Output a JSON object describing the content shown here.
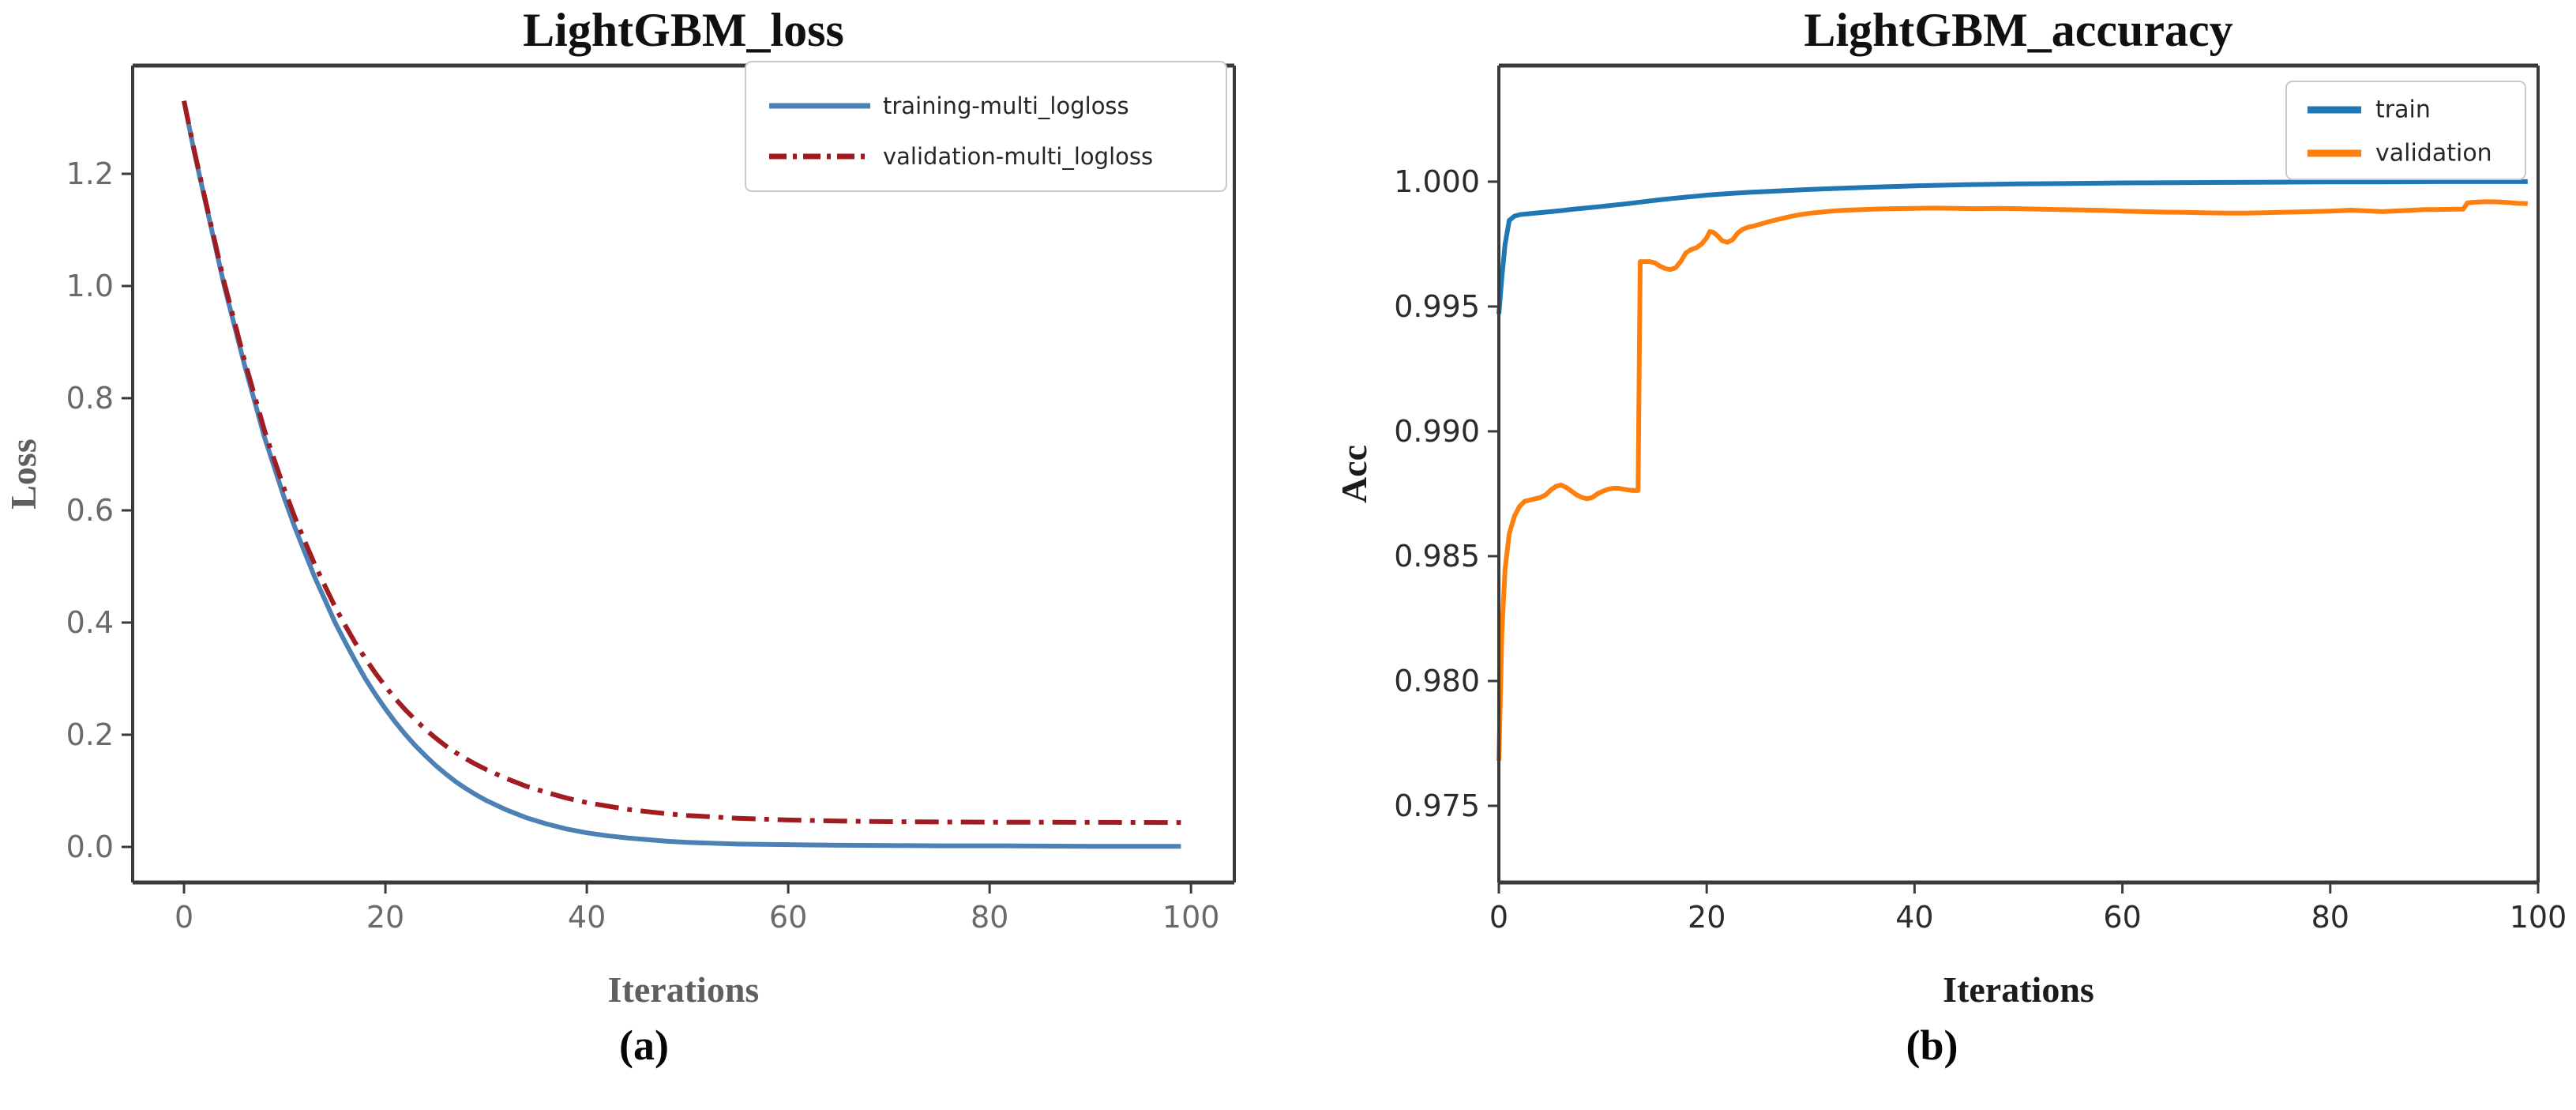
{
  "figure": {
    "background": "#ffffff",
    "captions": [
      {
        "label": "(a)"
      },
      {
        "label": "(b)"
      }
    ]
  },
  "chart_data": [
    {
      "type": "line",
      "title": "LightGBM_loss",
      "xlabel": "Iterations",
      "ylabel": "Loss",
      "xlim": [
        -5.1,
        104.3
      ],
      "ylim": [
        -0.0634,
        1.393
      ],
      "xticks": [
        0,
        20,
        40,
        60,
        80,
        100
      ],
      "yticks": [
        0.0,
        0.2,
        0.4,
        0.6,
        0.8,
        1.0,
        1.2
      ],
      "ytick_decimals": 1,
      "grid": false,
      "legend_position": "upper-right",
      "title_color": "#101010",
      "text_color": "#5f5f5f",
      "tick_label_color": "#6a6a6a",
      "spine_color": "#3a3a3a",
      "series": [
        {
          "name": "training-multi_logloss",
          "color": "#4d80b4",
          "style": "solid",
          "points": [
            [
              0,
              1.33
            ],
            [
              1,
              1.24
            ],
            [
              2,
              1.16
            ],
            [
              3,
              1.08
            ],
            [
              4,
              1.0
            ],
            [
              5,
              0.93
            ],
            [
              6,
              0.86
            ],
            [
              7,
              0.795
            ],
            [
              8,
              0.73
            ],
            [
              9,
              0.675
            ],
            [
              10,
              0.62
            ],
            [
              11,
              0.57
            ],
            [
              12,
              0.525
            ],
            [
              13,
              0.48
            ],
            [
              14,
              0.44
            ],
            [
              15,
              0.4
            ],
            [
              16,
              0.365
            ],
            [
              17,
              0.332
            ],
            [
              18,
              0.3
            ],
            [
              19,
              0.272
            ],
            [
              20,
              0.246
            ],
            [
              21,
              0.222
            ],
            [
              22,
              0.2
            ],
            [
              23,
              0.18
            ],
            [
              24,
              0.162
            ],
            [
              25,
              0.145
            ],
            [
              26,
              0.13
            ],
            [
              27,
              0.116
            ],
            [
              28,
              0.104
            ],
            [
              29,
              0.093
            ],
            [
              30,
              0.083
            ],
            [
              32,
              0.066
            ],
            [
              34,
              0.052
            ],
            [
              36,
              0.041
            ],
            [
              38,
              0.032
            ],
            [
              40,
              0.025
            ],
            [
              42,
              0.02
            ],
            [
              44,
              0.016
            ],
            [
              46,
              0.013
            ],
            [
              48,
              0.01
            ],
            [
              50,
              0.008
            ],
            [
              55,
              0.005
            ],
            [
              60,
              0.004
            ],
            [
              65,
              0.003
            ],
            [
              70,
              0.0025
            ],
            [
              75,
              0.002
            ],
            [
              80,
              0.002
            ],
            [
              85,
              0.0015
            ],
            [
              90,
              0.001
            ],
            [
              95,
              0.001
            ],
            [
              99,
              0.001
            ]
          ]
        },
        {
          "name": "validation-multi_logloss",
          "color": "#a01c20",
          "style": "dashdot",
          "points": [
            [
              0,
              1.33
            ],
            [
              1,
              1.243
            ],
            [
              2,
              1.163
            ],
            [
              3,
              1.084
            ],
            [
              4,
              1.006
            ],
            [
              5,
              0.937
            ],
            [
              6,
              0.868
            ],
            [
              7,
              0.805
            ],
            [
              8,
              0.742
            ],
            [
              9,
              0.688
            ],
            [
              10,
              0.636
            ],
            [
              11,
              0.588
            ],
            [
              12,
              0.545
            ],
            [
              13,
              0.503
            ],
            [
              14,
              0.465
            ],
            [
              15,
              0.428
            ],
            [
              16,
              0.395
            ],
            [
              17,
              0.364
            ],
            [
              18,
              0.336
            ],
            [
              19,
              0.31
            ],
            [
              20,
              0.286
            ],
            [
              21,
              0.264
            ],
            [
              22,
              0.244
            ],
            [
              23,
              0.226
            ],
            [
              24,
              0.209
            ],
            [
              25,
              0.194
            ],
            [
              26,
              0.18
            ],
            [
              27,
              0.168
            ],
            [
              28,
              0.157
            ],
            [
              29,
              0.147
            ],
            [
              30,
              0.138
            ],
            [
              32,
              0.122
            ],
            [
              34,
              0.108
            ],
            [
              36,
              0.097
            ],
            [
              38,
              0.087
            ],
            [
              40,
              0.079
            ],
            [
              42,
              0.073
            ],
            [
              44,
              0.067
            ],
            [
              46,
              0.063
            ],
            [
              48,
              0.059
            ],
            [
              50,
              0.056
            ],
            [
              55,
              0.051
            ],
            [
              60,
              0.048
            ],
            [
              65,
              0.046
            ],
            [
              70,
              0.045
            ],
            [
              75,
              0.0445
            ],
            [
              80,
              0.044
            ],
            [
              85,
              0.044
            ],
            [
              90,
              0.0438
            ],
            [
              95,
              0.0436
            ],
            [
              99,
              0.0435
            ]
          ]
        }
      ]
    },
    {
      "type": "line",
      "title": "LightGBM_accuracy",
      "xlabel": "Iterations",
      "ylabel": "Acc",
      "xlim": [
        0,
        100
      ],
      "ylim": [
        0.97193,
        1.00465
      ],
      "xticks": [
        0,
        20,
        40,
        60,
        80,
        100
      ],
      "yticks": [
        0.975,
        0.98,
        0.985,
        0.99,
        0.995,
        1.0
      ],
      "ytick_decimals": 3,
      "grid": false,
      "legend_position": "upper-right",
      "title_color": "#101010",
      "text_color": "#1c1c1c",
      "tick_label_color": "#2b2b2b",
      "spine_color": "#3a3a3a",
      "series": [
        {
          "name": "train",
          "color": "#1f77b4",
          "style": "solid",
          "points": [
            [
              0,
              0.9947
            ],
            [
              0.3,
              0.9962
            ],
            [
              0.6,
              0.9975
            ],
            [
              1,
              0.99845
            ],
            [
              1.5,
              0.99862
            ],
            [
              2,
              0.99868
            ],
            [
              3,
              0.99872
            ],
            [
              4,
              0.99876
            ],
            [
              5,
              0.9988
            ],
            [
              6,
              0.99884
            ],
            [
              7,
              0.99889
            ],
            [
              8,
              0.99893
            ],
            [
              9,
              0.99897
            ],
            [
              10,
              0.99901
            ],
            [
              11,
              0.99906
            ],
            [
              12,
              0.9991
            ],
            [
              13,
              0.99915
            ],
            [
              14,
              0.9992
            ],
            [
              15,
              0.99925
            ],
            [
              16,
              0.9993
            ],
            [
              17,
              0.99934
            ],
            [
              18,
              0.99938
            ],
            [
              19,
              0.99942
            ],
            [
              20,
              0.99946
            ],
            [
              22,
              0.99952
            ],
            [
              24,
              0.99957
            ],
            [
              26,
              0.99961
            ],
            [
              28,
              0.99965
            ],
            [
              30,
              0.99969
            ],
            [
              33,
              0.99974
            ],
            [
              36,
              0.99978
            ],
            [
              40,
              0.99983
            ],
            [
              45,
              0.99988
            ],
            [
              50,
              0.99991
            ],
            [
              55,
              0.99993
            ],
            [
              60,
              0.99995
            ],
            [
              65,
              0.99996
            ],
            [
              70,
              0.99997
            ],
            [
              75,
              0.99998
            ],
            [
              80,
              0.99999
            ],
            [
              85,
              0.99999
            ],
            [
              90,
              1.0
            ],
            [
              95,
              1.0
            ],
            [
              99,
              1.0
            ]
          ]
        },
        {
          "name": "validation",
          "color": "#ff7f0e",
          "style": "solid",
          "points": [
            [
              0,
              0.9768
            ],
            [
              0.3,
              0.982
            ],
            [
              0.6,
              0.9845
            ],
            [
              1,
              0.9859
            ],
            [
              1.5,
              0.9866
            ],
            [
              2,
              0.987
            ],
            [
              2.5,
              0.9872
            ],
            [
              3,
              0.98725
            ],
            [
              3.5,
              0.9873
            ],
            [
              4,
              0.98735
            ],
            [
              4.5,
              0.98745
            ],
            [
              5,
              0.98765
            ],
            [
              5.5,
              0.9878
            ],
            [
              6,
              0.98785
            ],
            [
              6.5,
              0.98775
            ],
            [
              7,
              0.9876
            ],
            [
              7.5,
              0.98745
            ],
            [
              8,
              0.98735
            ],
            [
              8.5,
              0.9873
            ],
            [
              9,
              0.98735
            ],
            [
              9.5,
              0.9875
            ],
            [
              10,
              0.9876
            ],
            [
              10.5,
              0.98768
            ],
            [
              11,
              0.98772
            ],
            [
              11.5,
              0.98772
            ],
            [
              12,
              0.98768
            ],
            [
              12.5,
              0.98765
            ],
            [
              13,
              0.98763
            ],
            [
              13.4,
              0.98763
            ],
            [
              13.6,
              0.9968
            ],
            [
              14,
              0.9968
            ],
            [
              14.5,
              0.9968
            ],
            [
              15,
              0.99675
            ],
            [
              15.5,
              0.99662
            ],
            [
              16,
              0.99652
            ],
            [
              16.5,
              0.99648
            ],
            [
              17,
              0.99655
            ],
            [
              17.5,
              0.9968
            ],
            [
              18,
              0.99715
            ],
            [
              18.5,
              0.99728
            ],
            [
              19,
              0.99735
            ],
            [
              19.5,
              0.9975
            ],
            [
              20,
              0.99775
            ],
            [
              20.3,
              0.998
            ],
            [
              20.6,
              0.99798
            ],
            [
              21,
              0.99785
            ],
            [
              21.5,
              0.99763
            ],
            [
              22,
              0.99757
            ],
            [
              22.5,
              0.99768
            ],
            [
              23,
              0.99795
            ],
            [
              23.5,
              0.9981
            ],
            [
              24,
              0.99818
            ],
            [
              24.5,
              0.99822
            ],
            [
              25,
              0.99828
            ],
            [
              26,
              0.9984
            ],
            [
              27,
              0.9985
            ],
            [
              28,
              0.9986
            ],
            [
              29,
              0.99868
            ],
            [
              30,
              0.99874
            ],
            [
              31,
              0.99878
            ],
            [
              32,
              0.99882
            ],
            [
              33,
              0.99885
            ],
            [
              34,
              0.99887
            ],
            [
              35,
              0.99888
            ],
            [
              36,
              0.9989
            ],
            [
              37,
              0.99891
            ],
            [
              38,
              0.99892
            ],
            [
              40,
              0.99893
            ],
            [
              42,
              0.99894
            ],
            [
              44,
              0.99893
            ],
            [
              46,
              0.99892
            ],
            [
              48,
              0.99893
            ],
            [
              50,
              0.99892
            ],
            [
              52,
              0.9989
            ],
            [
              54,
              0.99888
            ],
            [
              56,
              0.99887
            ],
            [
              58,
              0.99885
            ],
            [
              60,
              0.99882
            ],
            [
              62,
              0.9988
            ],
            [
              64,
              0.99878
            ],
            [
              66,
              0.99877
            ],
            [
              68,
              0.99875
            ],
            [
              70,
              0.99874
            ],
            [
              72,
              0.99874
            ],
            [
              74,
              0.99876
            ],
            [
              76,
              0.99878
            ],
            [
              78,
              0.9988
            ],
            [
              80,
              0.99882
            ],
            [
              81,
              0.99884
            ],
            [
              82,
              0.99886
            ],
            [
              83,
              0.99884
            ],
            [
              84,
              0.99882
            ],
            [
              85,
              0.9988
            ],
            [
              86,
              0.99882
            ],
            [
              87,
              0.99884
            ],
            [
              88,
              0.99886
            ],
            [
              89,
              0.99888
            ],
            [
              90,
              0.99888
            ],
            [
              91,
              0.99889
            ],
            [
              92,
              0.9989
            ],
            [
              92.8,
              0.9989
            ],
            [
              93.2,
              0.99915
            ],
            [
              94,
              0.99918
            ],
            [
              95,
              0.9992
            ],
            [
              96,
              0.99919
            ],
            [
              97,
              0.99917
            ],
            [
              98,
              0.99913
            ],
            [
              99,
              0.99912
            ]
          ]
        }
      ]
    }
  ]
}
